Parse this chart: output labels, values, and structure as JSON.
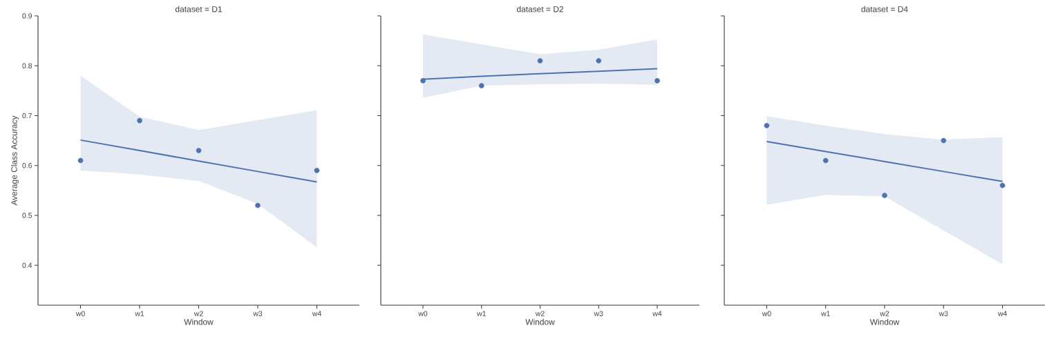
{
  "chart_data": [
    {
      "type": "scatter",
      "title": "dataset = D1",
      "xlabel": "Window",
      "ylabel": "Average Class Accuracy",
      "categories": [
        "w0",
        "w1",
        "w2",
        "w3",
        "w4"
      ],
      "ylim": [
        0.32,
        0.9
      ],
      "yticks": [
        0.4,
        0.5,
        0.6,
        0.7,
        0.8,
        0.9
      ],
      "series": [
        {
          "marker": "circle",
          "color": "#4c72b0",
          "values": [
            0.61,
            0.69,
            0.63,
            0.52,
            0.59
          ]
        },
        {
          "type": "line",
          "color": "#4c72b0",
          "values": [
            0.651,
            0.63,
            0.609,
            0.588,
            0.567
          ],
          "lower": [
            0.59,
            0.582,
            0.569,
            0.523,
            0.436
          ],
          "upper": [
            0.78,
            0.698,
            0.671,
            0.691,
            0.711
          ]
        }
      ]
    },
    {
      "type": "scatter",
      "title": "dataset = D2",
      "xlabel": "Window",
      "tick_labels": "x",
      "categories": [
        "w0",
        "w1",
        "w2",
        "w3",
        "w4"
      ],
      "ylim": [
        0.32,
        0.9
      ],
      "yticks": [
        0.4,
        0.5,
        0.6,
        0.7,
        0.8,
        0.9
      ],
      "series": [
        {
          "marker": "circle",
          "color": "#4c72b0",
          "values": [
            0.77,
            0.76,
            0.81,
            0.81,
            0.77
          ]
        },
        {
          "type": "line",
          "color": "#4c72b0",
          "values": [
            0.773,
            0.779,
            0.784,
            0.789,
            0.794
          ],
          "lower": [
            0.736,
            0.76,
            0.763,
            0.764,
            0.762
          ],
          "upper": [
            0.863,
            0.843,
            0.823,
            0.832,
            0.853
          ]
        }
      ]
    },
    {
      "type": "scatter",
      "title": "dataset = D4",
      "xlabel": "Window",
      "tick_labels": "x",
      "categories": [
        "w0",
        "w1",
        "w2",
        "w3",
        "w4"
      ],
      "ylim": [
        0.32,
        0.9
      ],
      "yticks": [
        0.4,
        0.5,
        0.6,
        0.7,
        0.8,
        0.9
      ],
      "series": [
        {
          "marker": "circle",
          "color": "#4c72b0",
          "values": [
            0.68,
            0.61,
            0.54,
            0.65,
            0.56
          ]
        },
        {
          "type": "line",
          "color": "#4c72b0",
          "values": [
            0.648,
            0.628,
            0.608,
            0.588,
            0.568
          ],
          "lower": [
            0.521,
            0.541,
            0.538,
            0.47,
            0.402
          ],
          "upper": [
            0.699,
            0.68,
            0.663,
            0.652,
            0.657
          ]
        }
      ]
    }
  ]
}
